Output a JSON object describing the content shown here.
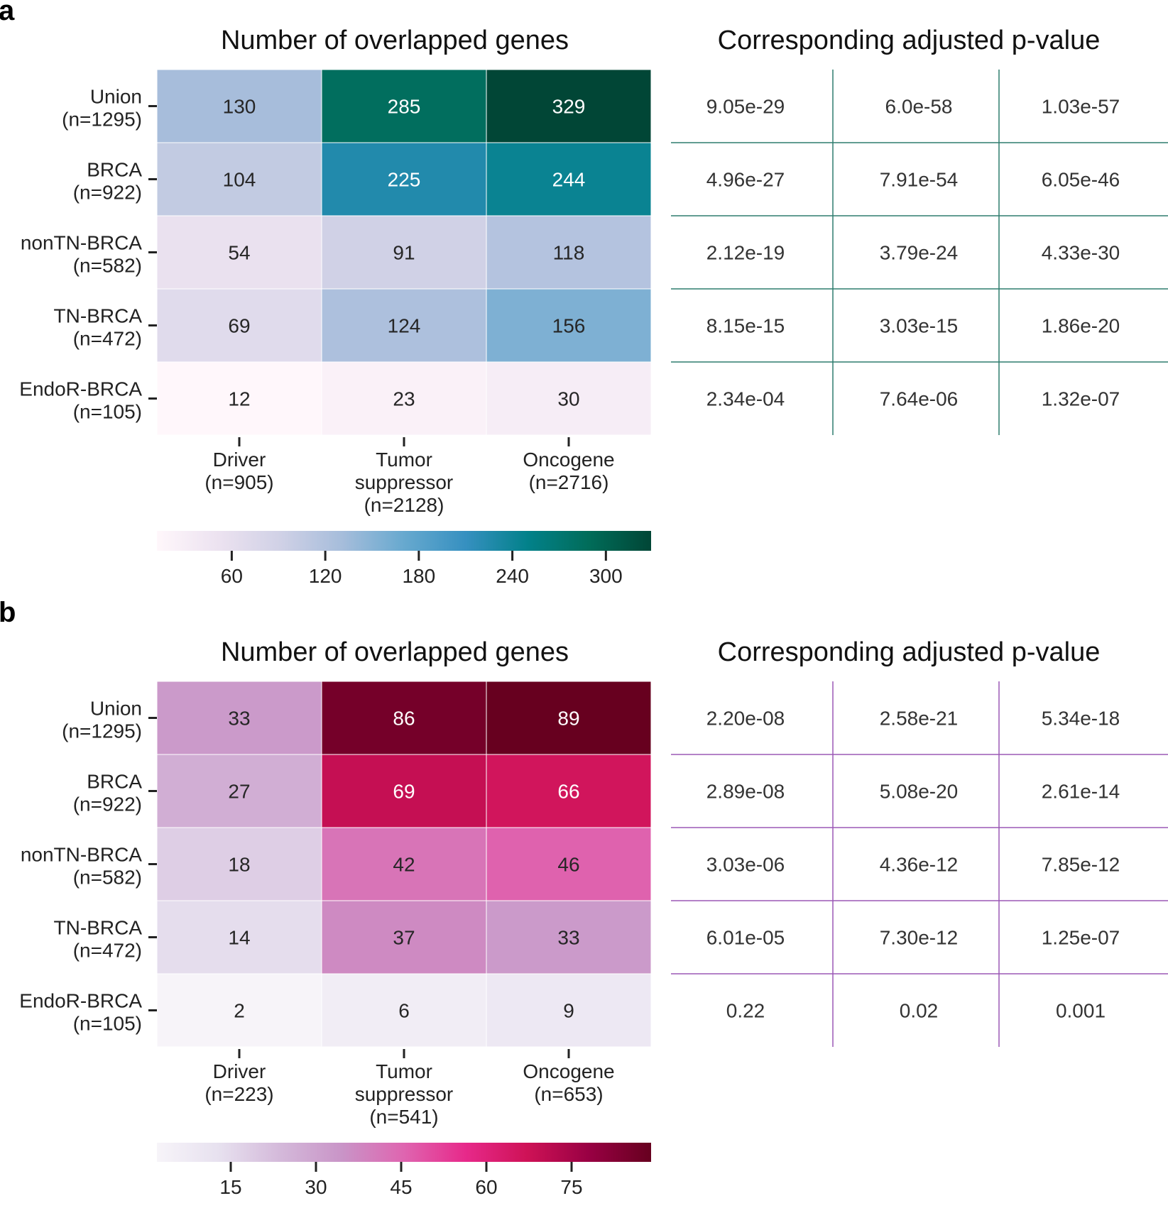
{
  "panels": [
    {
      "letter": "a",
      "heatmap_title": "Number of overlapped genes",
      "table_title": "Corresponding adjusted p-value",
      "rows": [
        [
          "Union",
          "(n=1295)"
        ],
        [
          "BRCA",
          "(n=922)"
        ],
        [
          "nonTN-BRCA",
          "(n=582)"
        ],
        [
          "TN-BRCA",
          "(n=472)"
        ],
        [
          "EndoR-BRCA",
          "(n=105)"
        ]
      ],
      "cols": [
        [
          "Driver",
          "(n=905)"
        ],
        [
          "Tumor",
          "suppressor",
          "(n=2128)"
        ],
        [
          "Oncogene",
          "(n=2716)"
        ]
      ],
      "values": [
        [
          130,
          285,
          329
        ],
        [
          104,
          225,
          244
        ],
        [
          54,
          91,
          118
        ],
        [
          69,
          124,
          156
        ],
        [
          12,
          23,
          30
        ]
      ],
      "pvalues": [
        [
          "9.05e-29",
          "6.0e-58",
          "1.03e-57"
        ],
        [
          "4.96e-27",
          "7.91e-54",
          "6.05e-46"
        ],
        [
          "2.12e-19",
          "3.79e-24",
          "4.33e-30"
        ],
        [
          "8.15e-15",
          "3.03e-15",
          "1.86e-20"
        ],
        [
          "2.34e-04",
          "7.64e-06",
          "1.32e-07"
        ]
      ],
      "colormap": "PuBuGn",
      "cmap_stops": [
        "#fff7fb",
        "#ece2f0",
        "#d0d1e6",
        "#a6bddb",
        "#67a9cf",
        "#3690c0",
        "#02818a",
        "#016c59",
        "#014636"
      ],
      "vmin": 12,
      "vmax": 329,
      "colorbar_ticks": [
        60,
        120,
        180,
        240,
        300
      ],
      "table_line_color": "#2e7d6e"
    },
    {
      "letter": "b",
      "heatmap_title": "Number of overlapped genes",
      "table_title": "Corresponding adjusted p-value",
      "rows": [
        [
          "Union",
          "(n=1295)"
        ],
        [
          "BRCA",
          "(n=922)"
        ],
        [
          "nonTN-BRCA",
          "(n=582)"
        ],
        [
          "TN-BRCA",
          "(n=472)"
        ],
        [
          "EndoR-BRCA",
          "(n=105)"
        ]
      ],
      "cols": [
        [
          "Driver",
          "(n=223)"
        ],
        [
          "Tumor",
          "suppressor",
          "(n=541)"
        ],
        [
          "Oncogene",
          "(n=653)"
        ]
      ],
      "values": [
        [
          33,
          86,
          89
        ],
        [
          27,
          69,
          66
        ],
        [
          18,
          42,
          46
        ],
        [
          14,
          37,
          33
        ],
        [
          2,
          6,
          9
        ]
      ],
      "pvalues": [
        [
          "2.20e-08",
          "2.58e-21",
          "5.34e-18"
        ],
        [
          "2.89e-08",
          "5.08e-20",
          "2.61e-14"
        ],
        [
          "3.03e-06",
          "4.36e-12",
          "7.85e-12"
        ],
        [
          "6.01e-05",
          "7.30e-12",
          "1.25e-07"
        ],
        [
          "0.22",
          "0.02",
          "0.001"
        ]
      ],
      "colormap": "PuRd",
      "cmap_stops": [
        "#f7f4f9",
        "#e7e1ef",
        "#d4b9da",
        "#c994c7",
        "#df65b0",
        "#e7298a",
        "#ce1256",
        "#980043",
        "#67001f"
      ],
      "vmin": 2,
      "vmax": 89,
      "colorbar_ticks": [
        15,
        30,
        45,
        60,
        75
      ],
      "table_line_color": "#9b59b6"
    }
  ],
  "chart_data": [
    {
      "type": "heatmap",
      "title": "Number of overlapped genes",
      "x": [
        "Driver (n=905)",
        "Tumor suppressor (n=2128)",
        "Oncogene (n=2716)"
      ],
      "y": [
        "Union (n=1295)",
        "BRCA (n=922)",
        "nonTN-BRCA (n=582)",
        "TN-BRCA (n=472)",
        "EndoR-BRCA (n=105)"
      ],
      "z": [
        [
          130,
          285,
          329
        ],
        [
          104,
          225,
          244
        ],
        [
          54,
          91,
          118
        ],
        [
          69,
          124,
          156
        ],
        [
          12,
          23,
          30
        ]
      ],
      "colorbar_ticks": [
        60,
        120,
        180,
        240,
        300
      ]
    },
    {
      "type": "table",
      "title": "Corresponding adjusted p-value",
      "rows": [
        [
          "9.05e-29",
          "6.0e-58",
          "1.03e-57"
        ],
        [
          "4.96e-27",
          "7.91e-54",
          "6.05e-46"
        ],
        [
          "2.12e-19",
          "3.79e-24",
          "4.33e-30"
        ],
        [
          "8.15e-15",
          "3.03e-15",
          "1.86e-20"
        ],
        [
          "2.34e-04",
          "7.64e-06",
          "1.32e-07"
        ]
      ]
    },
    {
      "type": "heatmap",
      "title": "Number of overlapped genes",
      "x": [
        "Driver (n=223)",
        "Tumor suppressor (n=541)",
        "Oncogene (n=653)"
      ],
      "y": [
        "Union (n=1295)",
        "BRCA (n=922)",
        "nonTN-BRCA (n=582)",
        "TN-BRCA (n=472)",
        "EndoR-BRCA (n=105)"
      ],
      "z": [
        [
          33,
          86,
          89
        ],
        [
          27,
          69,
          66
        ],
        [
          18,
          42,
          46
        ],
        [
          14,
          37,
          33
        ],
        [
          2,
          6,
          9
        ]
      ],
      "colorbar_ticks": [
        15,
        30,
        45,
        60,
        75
      ]
    },
    {
      "type": "table",
      "title": "Corresponding adjusted p-value",
      "rows": [
        [
          "2.20e-08",
          "2.58e-21",
          "5.34e-18"
        ],
        [
          "2.89e-08",
          "5.08e-20",
          "2.61e-14"
        ],
        [
          "3.03e-06",
          "4.36e-12",
          "7.85e-12"
        ],
        [
          "6.01e-05",
          "7.30e-12",
          "1.25e-07"
        ],
        [
          "0.22",
          "0.02",
          "0.001"
        ]
      ]
    }
  ]
}
